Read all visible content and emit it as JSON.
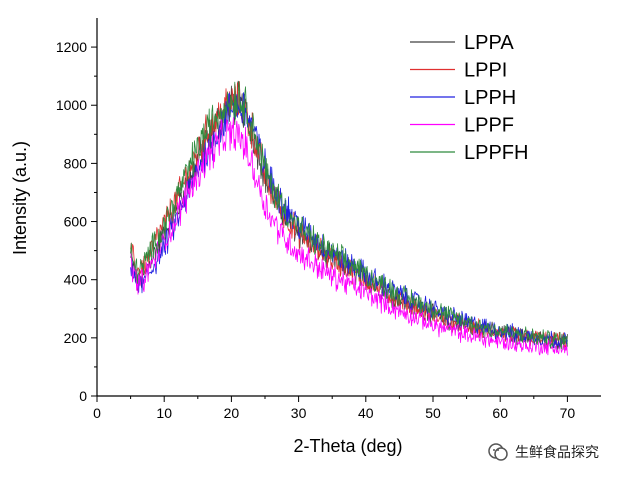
{
  "chart_data": {
    "type": "line",
    "title": "",
    "xlabel": "2-Theta (deg)",
    "ylabel": "Intensity (a.u.)",
    "xlim": [
      0,
      75
    ],
    "ylim": [
      0,
      1300
    ],
    "xticks": [
      0,
      10,
      20,
      30,
      40,
      50,
      60,
      70
    ],
    "yticks": [
      0,
      200,
      400,
      600,
      800,
      1000,
      1200
    ],
    "grid": false,
    "legend_position": "top-right",
    "x": [
      5,
      6,
      7,
      8,
      10,
      12,
      14,
      16,
      18,
      19,
      20,
      21,
      22,
      23,
      24,
      25,
      26,
      28,
      30,
      32,
      35,
      38,
      40,
      42,
      45,
      48,
      50,
      52,
      55,
      58,
      60,
      63,
      66,
      68,
      70
    ],
    "series": [
      {
        "name": "LPPA",
        "color": "#404040",
        "values": [
          470,
          390,
          410,
          470,
          560,
          650,
          760,
          860,
          940,
          970,
          1000,
          1010,
          980,
          920,
          840,
          760,
          700,
          620,
          560,
          520,
          470,
          430,
          400,
          370,
          330,
          300,
          280,
          260,
          240,
          225,
          215,
          205,
          195,
          190,
          185
        ]
      },
      {
        "name": "LPPI",
        "color": "#e03030",
        "values": [
          500,
          430,
          450,
          500,
          590,
          680,
          790,
          890,
          960,
          990,
          1010,
          1010,
          980,
          920,
          840,
          760,
          700,
          620,
          560,
          520,
          470,
          430,
          400,
          370,
          330,
          300,
          280,
          260,
          240,
          225,
          215,
          205,
          195,
          190,
          185
        ]
      },
      {
        "name": "LPPH",
        "color": "#2020e0",
        "values": [
          440,
          380,
          390,
          430,
          510,
          610,
          720,
          830,
          910,
          950,
          990,
          1000,
          985,
          930,
          860,
          790,
          730,
          650,
          590,
          550,
          490,
          450,
          420,
          390,
          350,
          320,
          300,
          280,
          255,
          235,
          225,
          210,
          200,
          195,
          190
        ]
      },
      {
        "name": "LPPF",
        "color": "#ff00ff",
        "values": [
          460,
          390,
          400,
          450,
          530,
          620,
          720,
          810,
          870,
          890,
          900,
          900,
          860,
          800,
          730,
          660,
          610,
          540,
          490,
          460,
          410,
          380,
          355,
          330,
          290,
          265,
          245,
          230,
          210,
          195,
          185,
          175,
          170,
          165,
          160
        ]
      },
      {
        "name": "LPPFH",
        "color": "#2e8b3e",
        "values": [
          490,
          430,
          450,
          500,
          590,
          690,
          800,
          900,
          970,
          1000,
          1020,
          1030,
          1000,
          940,
          860,
          780,
          720,
          640,
          580,
          540,
          490,
          450,
          420,
          390,
          350,
          320,
          300,
          280,
          255,
          235,
          225,
          210,
          200,
          195,
          190
        ]
      }
    ]
  },
  "watermark": {
    "text": "生鲜食品探究"
  }
}
